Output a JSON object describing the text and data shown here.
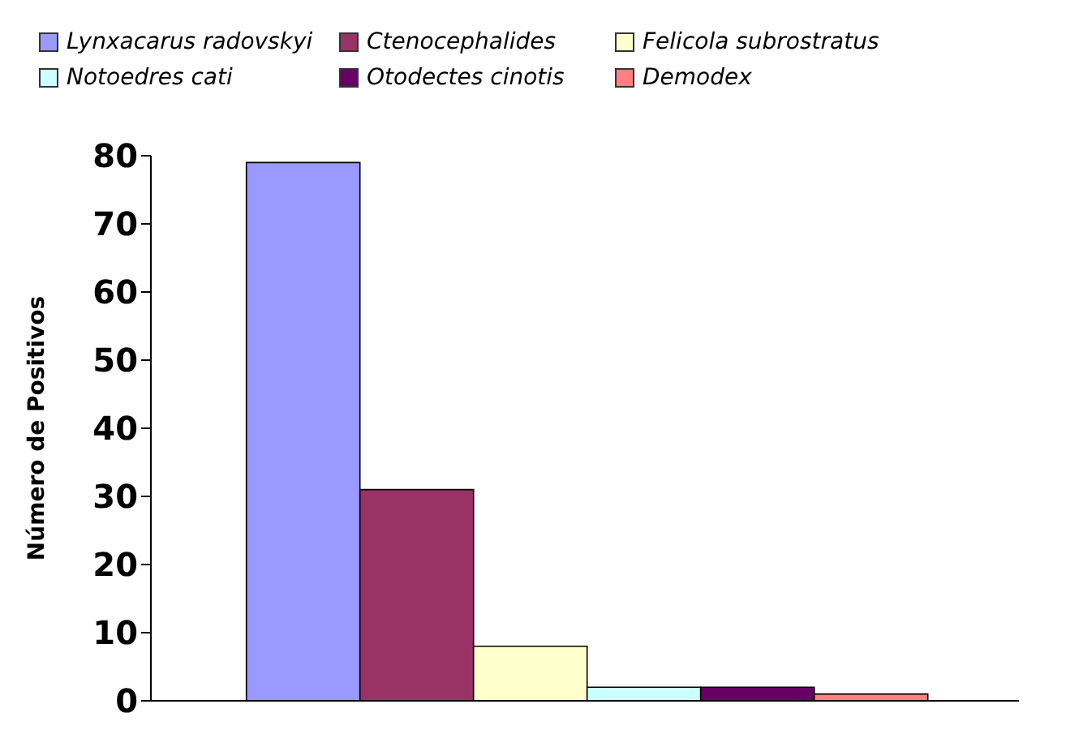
{
  "chart_data": {
    "type": "bar",
    "ylabel": "Número de Positivos",
    "categories": [
      null
    ],
    "series": [
      {
        "name": "Lynxacarus radovskyi",
        "color": "#9999ff",
        "values": [
          79
        ]
      },
      {
        "name": "Ctenocephalides",
        "color": "#993366",
        "values": [
          31
        ]
      },
      {
        "name": "Felicola subrostratus",
        "color": "#ffffcc",
        "values": [
          8
        ]
      },
      {
        "name": "Notoedres cati",
        "color": "#ccffff",
        "values": [
          2
        ]
      },
      {
        "name": "Otodectes cinotis",
        "color": "#660066",
        "values": [
          2
        ]
      },
      {
        "name": "Demodex",
        "color": "#ff8080",
        "values": [
          1
        ]
      }
    ],
    "ylim": [
      0,
      80
    ],
    "yticks": [
      0,
      10,
      20,
      30,
      40,
      50,
      60,
      70,
      80
    ],
    "grid": false,
    "legend": "top"
  }
}
